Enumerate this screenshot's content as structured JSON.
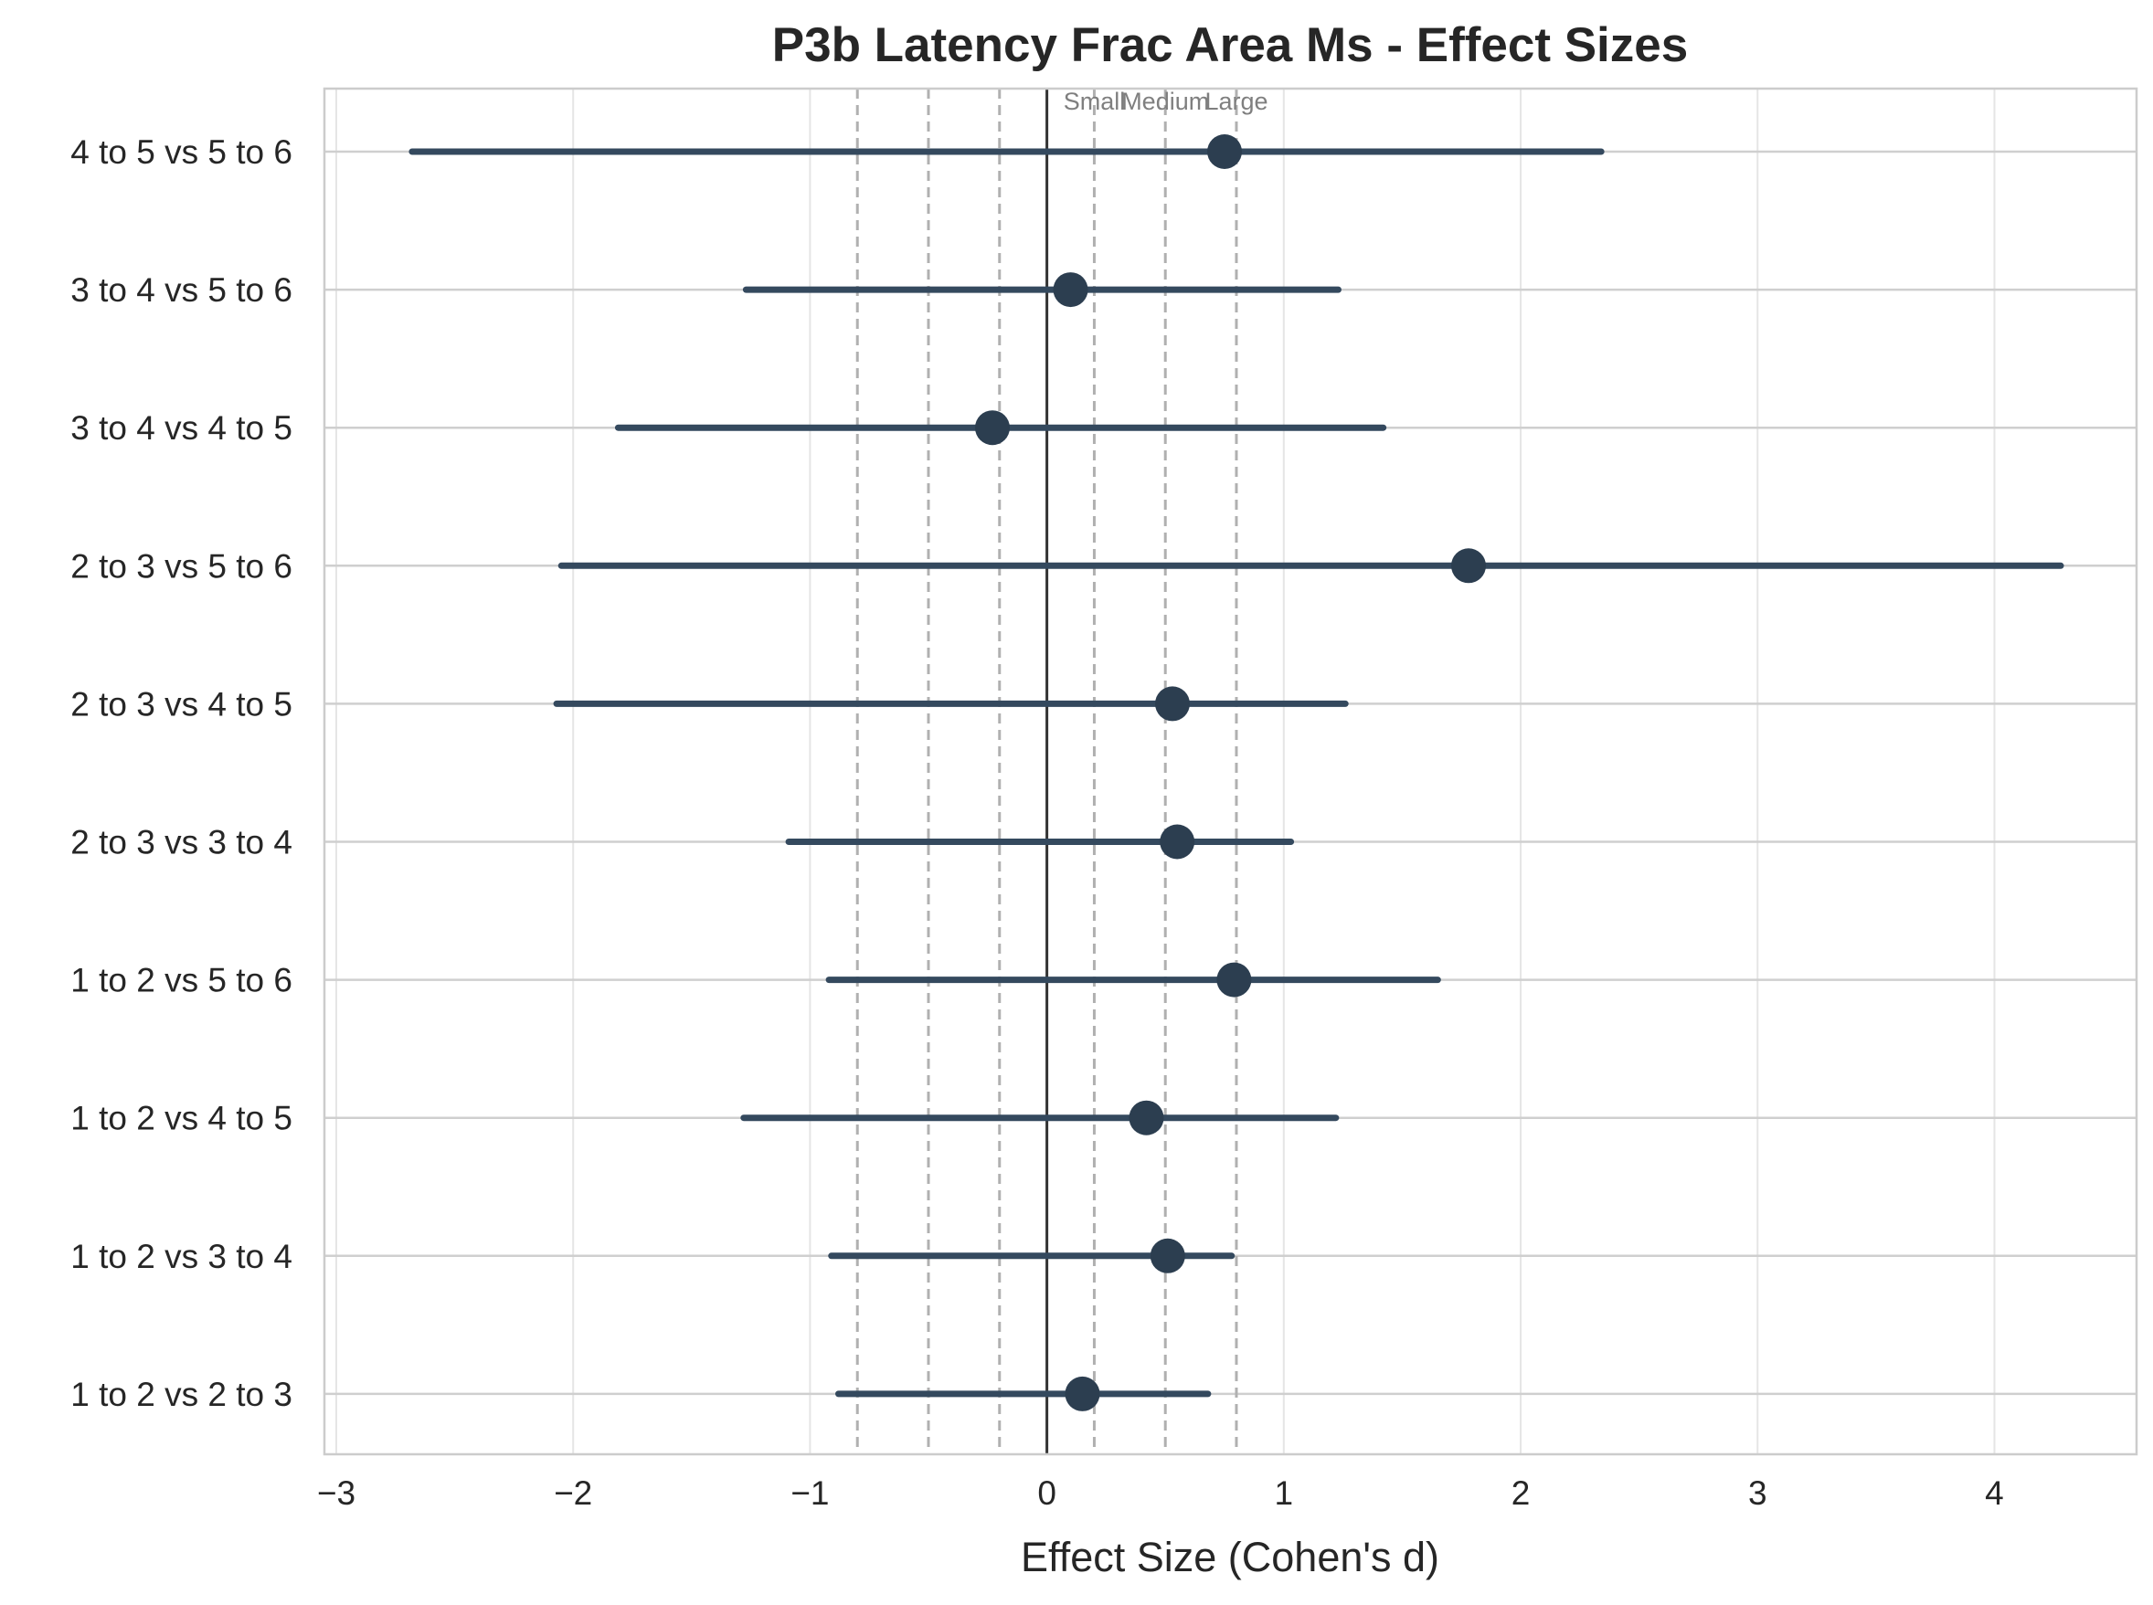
{
  "chart_data": {
    "type": "scatter",
    "title": "P3b Latency Frac Area Ms - Effect Sizes",
    "xlabel": "Effect Size (Cohen's d)",
    "ylabel": "",
    "xlim": [
      -3.05,
      4.6
    ],
    "x_ticks": [
      -3,
      -2,
      -1,
      0,
      1,
      2,
      3,
      4
    ],
    "x_tick_labels": [
      "−3",
      "−2",
      "−1",
      "0",
      "1",
      "2",
      "3",
      "4"
    ],
    "grid": true,
    "categories": [
      "4 to 5 vs 5 to 6",
      "3 to 4 vs 5 to 6",
      "3 to 4 vs 4 to 5",
      "2 to 3 vs 5 to 6",
      "2 to 3 vs 4 to 5",
      "2 to 3 vs 3 to 4",
      "1 to 2 vs 5 to 6",
      "1 to 2 vs 4 to 5",
      "1 to 2 vs 3 to 4",
      "1 to 2 vs 2 to 3"
    ],
    "effect_sizes": [
      0.75,
      0.1,
      -0.23,
      1.78,
      0.53,
      0.55,
      0.79,
      0.42,
      0.51,
      0.15
    ],
    "ci_lower": [
      -2.68,
      -1.27,
      -1.81,
      -2.05,
      -2.07,
      -1.09,
      -0.92,
      -1.28,
      -0.91,
      -0.88
    ],
    "ci_upper": [
      2.34,
      1.23,
      1.42,
      4.28,
      1.26,
      1.03,
      1.65,
      1.22,
      0.78,
      0.68
    ],
    "reference_lines": {
      "zero": 0,
      "thresholds": [
        -0.8,
        -0.5,
        -0.2,
        0.2,
        0.5,
        0.8
      ],
      "labels": [
        {
          "text": "Small",
          "x": 0.2
        },
        {
          "text": "Medium",
          "x": 0.5
        },
        {
          "text": "Large",
          "x": 0.8
        }
      ]
    },
    "colors": {
      "series": "#2c3e50",
      "error_bar": "#34495e",
      "grid": "#e5e5e5",
      "reference": "#b0b0b0",
      "zero_line": "#333333",
      "ref_label": "#7f7f7f"
    }
  }
}
